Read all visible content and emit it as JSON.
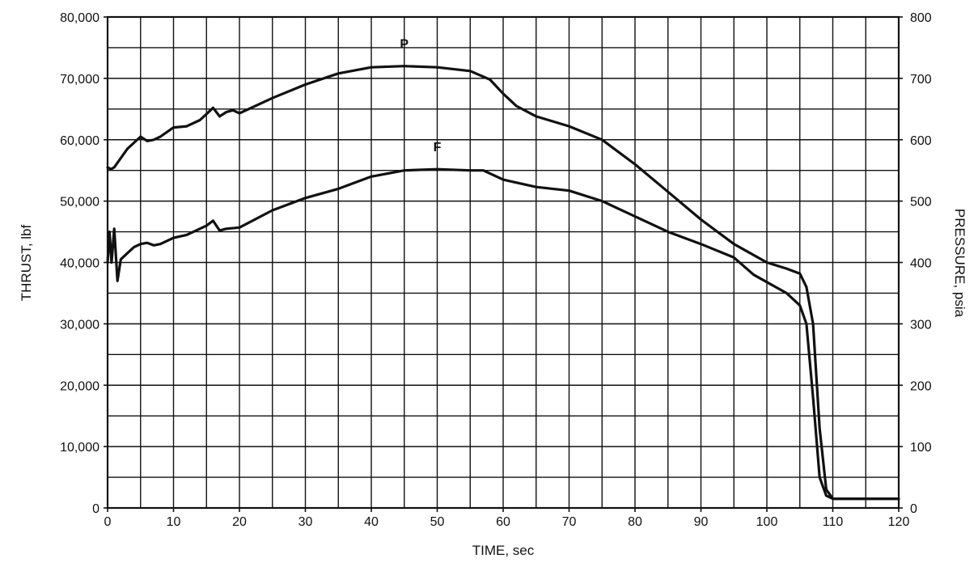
{
  "chart_data": {
    "type": "line",
    "title": "",
    "xlabel": "TIME, sec",
    "ylabel": "THRUST, lbf",
    "y2label": "PRESSURE, psia",
    "xlim": [
      0,
      120
    ],
    "ylim": [
      0,
      80000
    ],
    "y2lim": [
      0,
      800
    ],
    "grid": true,
    "x_ticks": [
      0,
      10,
      20,
      30,
      40,
      50,
      60,
      70,
      80,
      90,
      100,
      110,
      120
    ],
    "y_ticks": [
      0,
      10000,
      20000,
      30000,
      40000,
      50000,
      60000,
      70000,
      80000
    ],
    "y_tick_labels": [
      "0",
      "10,000",
      "20,000",
      "30,000",
      "40,000",
      "50,000",
      "60,000",
      "70,000",
      "80,000"
    ],
    "y2_ticks": [
      0,
      100,
      200,
      300,
      400,
      500,
      600,
      700,
      800
    ],
    "y2_tick_labels": [
      "0",
      "100",
      "200",
      "300",
      "400",
      "500",
      "600",
      "700",
      "800"
    ],
    "series": [
      {
        "name": "P",
        "axis": "right",
        "x": [
          0,
          0.5,
          1,
          2,
          3,
          4,
          5,
          6,
          7,
          8,
          10,
          12,
          14,
          15,
          16,
          17,
          18,
          19,
          20,
          25,
          30,
          35,
          40,
          45,
          50,
          55,
          58,
          60,
          62,
          65,
          70,
          75,
          80,
          85,
          90,
          95,
          100,
          103,
          105,
          106,
          107,
          108,
          109,
          110,
          115,
          120
        ],
        "values": [
          555,
          552,
          555,
          570,
          585,
          595,
          605,
          598,
          600,
          605,
          620,
          622,
          632,
          642,
          652,
          638,
          645,
          648,
          643,
          668,
          690,
          708,
          718,
          720,
          718,
          712,
          698,
          675,
          655,
          638,
          622,
          600,
          560,
          515,
          470,
          430,
          400,
          390,
          382,
          360,
          300,
          130,
          30,
          15,
          15,
          15
        ]
      },
      {
        "name": "F",
        "axis": "left",
        "x": [
          0,
          0.3,
          0.6,
          1,
          1.5,
          2,
          3,
          4,
          5,
          6,
          7,
          8,
          10,
          12,
          14,
          15,
          16,
          17,
          18,
          20,
          25,
          30,
          35,
          40,
          45,
          50,
          55,
          57,
          60,
          65,
          70,
          75,
          80,
          85,
          90,
          95,
          98,
          100,
          103,
          105,
          106,
          107,
          108,
          109,
          110,
          115,
          120
        ],
        "values": [
          40000,
          45000,
          40000,
          45500,
          37000,
          40500,
          41500,
          42500,
          43000,
          43200,
          42800,
          43000,
          44000,
          44500,
          45500,
          46000,
          46800,
          45200,
          45500,
          45700,
          48500,
          50500,
          52000,
          54000,
          55000,
          55200,
          55000,
          55000,
          53500,
          52300,
          51700,
          50000,
          47500,
          45000,
          43000,
          40800,
          38000,
          36800,
          35000,
          33000,
          30000,
          18000,
          5000,
          2000,
          1500,
          1500,
          1500
        ]
      }
    ]
  }
}
